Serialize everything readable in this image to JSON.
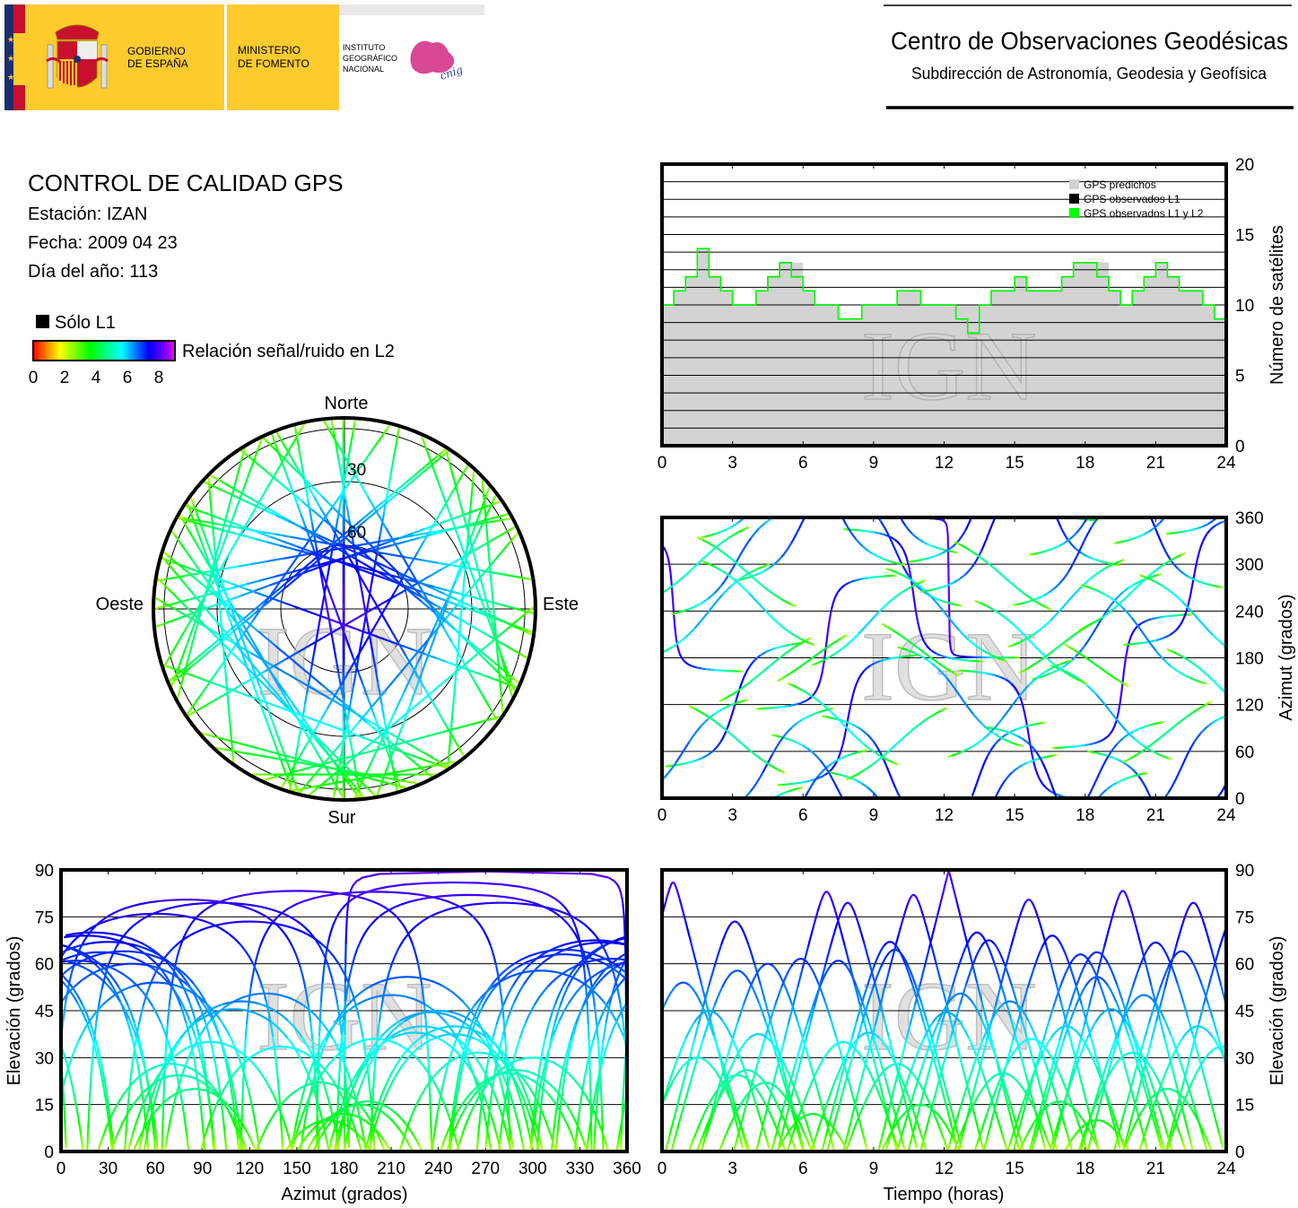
{
  "header": {
    "gobierno_line1": "GOBIERNO",
    "gobierno_line2": "DE ESPAÑA",
    "ministerio_line1": "MINISTERIO",
    "ministerio_line2": "DE FOMENTO",
    "instituto_line1": "INSTITUTO",
    "instituto_line2": "GEOGRÁFICO",
    "instituto_line3": "NACIONAL",
    "cnig_logo_text": "cnig",
    "center_title": "Centro de Observaciones Geodésicas",
    "center_subtitle": "Subdirección de Astronomía, Geodesia y Geofísica",
    "colors": {
      "yellow": "#fecb2f",
      "red": "#c8102e",
      "blue": "#1b2f6e",
      "cnig_magenta": "#d6338a"
    }
  },
  "info": {
    "title": "CONTROL DE CALIDAD GPS",
    "station": "Estación: IZAN",
    "date": "Fecha: 2009 04 23",
    "day_of_year": "Día del año: 113"
  },
  "legend": {
    "solo_l1": "Sólo L1",
    "colorbar_label": "Relación señal/ruido en L2",
    "colorbar_ticks": [
      "0",
      "2",
      "4",
      "6",
      "8"
    ],
    "colormap": [
      [
        0,
        "#ff0000"
      ],
      [
        1.5,
        "#ffff00"
      ],
      [
        3.2,
        "#00ff00"
      ],
      [
        5,
        "#00ffff"
      ],
      [
        6.5,
        "#0000ff"
      ],
      [
        7.5,
        "#8000ff"
      ],
      [
        8,
        "#ff00ff"
      ]
    ],
    "solo_l1_color": "#000000"
  },
  "watermark": "IGN",
  "satellite_passes": [
    {
      "peak_hour": 0.47,
      "max_elevation": 86,
      "peak_azimuth": 250,
      "heading": -1
    },
    {
      "peak_hour": 3.1,
      "max_elevation": 73.5,
      "peak_azimuth": 120,
      "heading": -1
    },
    {
      "peak_hour": 7.0,
      "max_elevation": 83,
      "peak_azimuth": 200,
      "heading": 1
    },
    {
      "peak_hour": 7.9,
      "max_elevation": 79.5,
      "peak_azimuth": 100,
      "heading": -1
    },
    {
      "peak_hour": 10.7,
      "max_elevation": 82,
      "peak_azimuth": 260,
      "heading": -1
    },
    {
      "peak_hour": 12.2,
      "max_elevation": 89.5,
      "peak_azimuth": 270,
      "heading": -1
    },
    {
      "peak_hour": 15.6,
      "max_elevation": 80.5,
      "peak_azimuth": 80,
      "heading": 1
    },
    {
      "peak_hour": 19.6,
      "max_elevation": 83.3,
      "peak_azimuth": 150,
      "heading": -1
    },
    {
      "peak_hour": 22.6,
      "max_elevation": 79.5,
      "peak_azimuth": 280,
      "heading": 1
    },
    {
      "peak_hour": 24.4,
      "max_elevation": 76,
      "peak_azimuth": 60,
      "heading": -1
    },
    {
      "peak_hour": 9.7,
      "max_elevation": 67,
      "peak_azimuth": 30,
      "heading": 1
    },
    {
      "peak_hour": 9.9,
      "max_elevation": 64.5,
      "peak_azimuth": 320,
      "heading": -1
    },
    {
      "peak_hour": 13.4,
      "max_elevation": 70,
      "peak_azimuth": 20,
      "heading": -1
    },
    {
      "peak_hour": 13.9,
      "max_elevation": 67.5,
      "peak_azimuth": 340,
      "heading": 1
    },
    {
      "peak_hour": 16.6,
      "max_elevation": 69,
      "peak_azimuth": 15,
      "heading": 1
    },
    {
      "peak_hour": 21.0,
      "max_elevation": 66.8,
      "peak_azimuth": 345,
      "heading": -1
    },
    {
      "peak_hour": 22.1,
      "max_elevation": 64,
      "peak_azimuth": 40,
      "heading": -1
    },
    {
      "peak_hour": 17.8,
      "max_elevation": 63,
      "peak_azimuth": 320,
      "heading": 1
    },
    {
      "peak_hour": 18.5,
      "max_elevation": 63.7,
      "peak_azimuth": 25,
      "heading": -1
    },
    {
      "peak_hour": 5.9,
      "max_elevation": 61.6,
      "peak_azimuth": 350,
      "heading": 1
    },
    {
      "peak_hour": 7.5,
      "max_elevation": 61,
      "peak_azimuth": 10,
      "heading": -1
    },
    {
      "peak_hour": 4.5,
      "max_elevation": 60,
      "peak_azimuth": 45,
      "heading": -1
    },
    {
      "peak_hour": 3.2,
      "max_elevation": 57.8,
      "peak_azimuth": 305,
      "heading": 1
    },
    {
      "peak_hour": 18.5,
      "max_elevation": 55.8,
      "peak_azimuth": 220,
      "heading": 1
    },
    {
      "peak_hour": 0.9,
      "max_elevation": 54,
      "peak_azimuth": 60,
      "heading": -1
    },
    {
      "peak_hour": 12.7,
      "max_elevation": 50.5,
      "peak_azimuth": 130,
      "heading": 1
    },
    {
      "peak_hour": 12.1,
      "max_elevation": 44.5,
      "peak_azimuth": 235,
      "heading": -1
    },
    {
      "peak_hour": 19.1,
      "max_elevation": 45.5,
      "peak_azimuth": 110,
      "heading": 1
    },
    {
      "peak_hour": 4.1,
      "max_elevation": 37.5,
      "peak_azimuth": 250,
      "heading": -1
    },
    {
      "peak_hour": 7.7,
      "max_elevation": 35,
      "peak_azimuth": 95,
      "heading": 1
    },
    {
      "peak_hour": 15.7,
      "max_elevation": 36,
      "peak_azimuth": 200,
      "heading": -1
    },
    {
      "peak_hour": 23.8,
      "max_elevation": 33.5,
      "peak_azimuth": 140,
      "heading": 1
    },
    {
      "peak_hour": 3.6,
      "max_elevation": 26,
      "peak_azimuth": 290,
      "heading": -1
    },
    {
      "peak_hour": 3.2,
      "max_elevation": 24.4,
      "peak_azimuth": 75,
      "heading": 1
    },
    {
      "peak_hour": 4.4,
      "max_elevation": 22,
      "peak_azimuth": 165,
      "heading": -1
    },
    {
      "peak_hour": 16.9,
      "max_elevation": 16,
      "peak_azimuth": 195,
      "heading": 1
    },
    {
      "peak_hour": 20.0,
      "max_elevation": 31.6,
      "peak_azimuth": 265,
      "heading": 1
    },
    {
      "peak_hour": 6.4,
      "max_elevation": 12,
      "peak_azimuth": 180,
      "heading": -1
    },
    {
      "peak_hour": 18.5,
      "max_elevation": 10,
      "peak_azimuth": 170,
      "heading": 1
    },
    {
      "peak_hour": 1.5,
      "max_elevation": 30,
      "peak_azimuth": 300,
      "heading": 1
    },
    {
      "peak_hour": 10.0,
      "max_elevation": 28,
      "peak_azimuth": 70,
      "heading": -1
    },
    {
      "peak_hour": 14.5,
      "max_elevation": 25,
      "peak_azimuth": 285,
      "heading": -1
    },
    {
      "peak_hour": 21.5,
      "max_elevation": 20,
      "peak_azimuth": 85,
      "heading": -1
    },
    {
      "peak_hour": 11.0,
      "max_elevation": 15,
      "peak_azimuth": 190,
      "heading": 1
    },
    {
      "peak_hour": 8.8,
      "max_elevation": 38,
      "peak_azimuth": 225,
      "heading": 1
    },
    {
      "peak_hour": 22.8,
      "max_elevation": 40,
      "peak_azimuth": 230,
      "heading": -1
    },
    {
      "peak_hour": 14.8,
      "max_elevation": 48,
      "peak_azimuth": 115,
      "heading": -1
    },
    {
      "peak_hour": 17.2,
      "max_elevation": 40,
      "peak_azimuth": 250,
      "heading": 1
    },
    {
      "peak_hour": 2.0,
      "max_elevation": 45,
      "peak_azimuth": 240,
      "heading": 1
    },
    {
      "peak_hour": 20.5,
      "max_elevation": 50,
      "peak_azimuth": 210,
      "heading": -1
    }
  ],
  "chart_data": [
    {
      "id": "satellite-count",
      "type": "area",
      "ylabel": "Número de satélites",
      "xlim": [
        0,
        24
      ],
      "ylim": [
        0,
        20
      ],
      "xticks": [
        "0",
        "3",
        "6",
        "9",
        "12",
        "15",
        "18",
        "21",
        "24"
      ],
      "yticks": [
        "0",
        "5",
        "10",
        "15",
        "20"
      ],
      "grid": true,
      "legend_position": "top-right",
      "x": [
        0,
        0.5,
        1,
        1.5,
        2,
        2.5,
        3,
        3.5,
        4,
        4.5,
        5,
        5.5,
        6,
        6.5,
        7,
        7.5,
        8,
        8.5,
        9,
        9.5,
        10,
        10.5,
        11,
        11.5,
        12,
        12.5,
        13,
        13.5,
        14,
        14.5,
        15,
        15.5,
        16,
        16.5,
        17,
        17.5,
        18,
        18.5,
        19,
        19.5,
        20,
        20.5,
        21,
        21.5,
        22,
        22.5,
        23,
        23.5,
        24
      ],
      "series": [
        {
          "name": "GPS predichos",
          "color": "#d3d3d3",
          "values": [
            10,
            11,
            12,
            14,
            12,
            11,
            10,
            10,
            11,
            12,
            13,
            13,
            11,
            10,
            10,
            9,
            9,
            10,
            10,
            10,
            11,
            11,
            10,
            10,
            10,
            10,
            10,
            10,
            11,
            11,
            12,
            11,
            11,
            11,
            12,
            13,
            13,
            13,
            11,
            10,
            11,
            12,
            13,
            12,
            11,
            11,
            10,
            9,
            9
          ]
        },
        {
          "name": "GPS observados L1",
          "color": "#000000",
          "values": [
            10,
            11,
            12,
            14,
            12,
            11,
            10,
            10,
            11,
            12,
            13,
            12,
            11,
            10,
            10,
            9,
            9,
            10,
            10,
            10,
            11,
            11,
            10,
            10,
            10,
            9,
            8,
            10,
            11,
            11,
            12,
            11,
            11,
            11,
            12,
            13,
            13,
            12,
            11,
            10,
            11,
            12,
            13,
            12,
            11,
            11,
            10,
            9,
            9
          ]
        },
        {
          "name": "GPS observados L1 y L2",
          "color": "#00ff00",
          "values": [
            10,
            11,
            12,
            14,
            12,
            11,
            10,
            10,
            11,
            12,
            13,
            12,
            11,
            10,
            10,
            9,
            9,
            10,
            10,
            10,
            11,
            11,
            10,
            10,
            10,
            9,
            8,
            10,
            11,
            11,
            12,
            11,
            11,
            11,
            12,
            13,
            13,
            12,
            11,
            10,
            11,
            12,
            13,
            12,
            11,
            11,
            10,
            9,
            9
          ]
        }
      ]
    },
    {
      "id": "skyplot",
      "type": "scatter",
      "projection": "polar",
      "direction_labels": {
        "north": "Norte",
        "south": "Sur",
        "west": "Oeste",
        "east": "Este"
      },
      "elevation_circles": [
        5,
        30,
        60
      ],
      "ring_labels": [
        "30",
        "60"
      ]
    },
    {
      "id": "azimuth-vs-time",
      "type": "scatter",
      "ylabel": "Azimut (grados)",
      "xlim": [
        0,
        24
      ],
      "ylim": [
        0,
        360
      ],
      "xticks": [
        "0",
        "3",
        "6",
        "9",
        "12",
        "15",
        "18",
        "21",
        "24"
      ],
      "yticks": [
        "0",
        "60",
        "120",
        "180",
        "240",
        "300",
        "360"
      ],
      "grid": true
    },
    {
      "id": "elevation-vs-azimuth",
      "type": "scatter",
      "xlabel": "Azimut (grados)",
      "ylabel": "Elevación (grados)",
      "xlim": [
        0,
        360
      ],
      "ylim": [
        0,
        90
      ],
      "xticks": [
        "0",
        "30",
        "60",
        "90",
        "120",
        "150",
        "180",
        "210",
        "240",
        "270",
        "300",
        "330",
        "360"
      ],
      "yticks": [
        "0",
        "15",
        "30",
        "45",
        "60",
        "75",
        "90"
      ],
      "grid": true
    },
    {
      "id": "elevation-vs-time",
      "type": "scatter",
      "xlabel": "Tiempo (horas)",
      "ylabel": "Elevación (grados)",
      "xlim": [
        0,
        24
      ],
      "ylim": [
        0,
        90
      ],
      "xticks": [
        "0",
        "3",
        "6",
        "9",
        "12",
        "15",
        "18",
        "21",
        "24"
      ],
      "yticks": [
        "0",
        "15",
        "30",
        "45",
        "60",
        "75",
        "90"
      ],
      "grid": true
    }
  ]
}
